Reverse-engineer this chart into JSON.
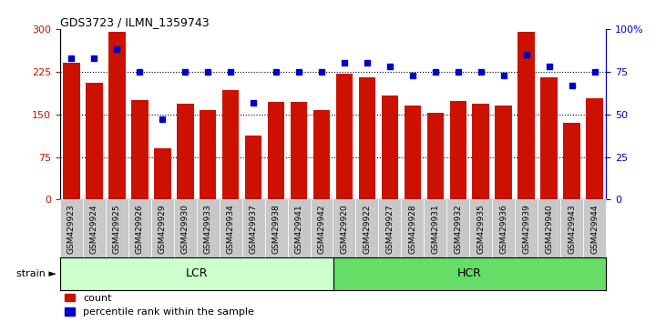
{
  "title": "GDS3723 / ILMN_1359743",
  "categories": [
    "GSM429923",
    "GSM429924",
    "GSM429925",
    "GSM429926",
    "GSM429929",
    "GSM429930",
    "GSM429933",
    "GSM429934",
    "GSM429937",
    "GSM429938",
    "GSM429941",
    "GSM429942",
    "GSM429920",
    "GSM429922",
    "GSM429927",
    "GSM429928",
    "GSM429931",
    "GSM429932",
    "GSM429935",
    "GSM429936",
    "GSM429939",
    "GSM429940",
    "GSM429943",
    "GSM429944"
  ],
  "counts": [
    240,
    205,
    295,
    175,
    90,
    168,
    158,
    192,
    113,
    172,
    172,
    158,
    222,
    215,
    183,
    165,
    152,
    173,
    168,
    165,
    295,
    215,
    135,
    178
  ],
  "percentile_ranks": [
    83,
    83,
    88,
    75,
    47,
    75,
    75,
    75,
    57,
    75,
    75,
    75,
    80,
    80,
    78,
    73,
    75,
    75,
    75,
    73,
    85,
    78,
    67,
    75
  ],
  "lcr_count": 12,
  "hcr_count": 12,
  "ylim_left": [
    0,
    300
  ],
  "ylim_right": [
    0,
    100
  ],
  "yticks_left": [
    0,
    75,
    150,
    225,
    300
  ],
  "yticks_right": [
    0,
    25,
    50,
    75,
    100
  ],
  "bar_color": "#CC1100",
  "dot_color": "#0000CC",
  "lcr_color": "#CCFFCC",
  "hcr_color": "#66DD66",
  "tick_bg_color": "#C8C8C8",
  "strain_label": "strain",
  "arrow": "►",
  "lcr_label": "LCR",
  "hcr_label": "HCR",
  "legend_count": "count",
  "legend_pct": "percentile rank within the sample"
}
